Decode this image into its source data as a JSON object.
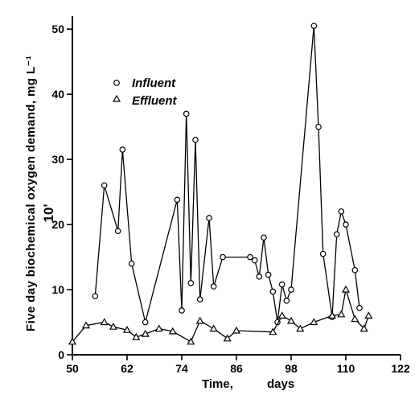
{
  "chart_data": {
    "type": "line",
    "ylabel": "Five day biochemical oxygen demand,   mg L⁻¹",
    "ylabel_multiplier": "10'",
    "xlabel_left": "Time,",
    "xlabel_right": "days",
    "xlim": [
      50,
      122
    ],
    "ylim": [
      0,
      52
    ],
    "x_ticks": [
      50,
      62,
      74,
      86,
      98,
      110,
      122
    ],
    "y_ticks": [
      0,
      10,
      20,
      30,
      40,
      50
    ],
    "legend_position": "top-left",
    "grid": false,
    "series": [
      {
        "name": "Influent",
        "marker": "circle",
        "x": [
          55,
          57,
          60,
          61,
          63,
          66,
          73,
          74,
          75,
          76,
          77,
          78,
          80,
          81,
          83,
          89,
          90,
          91,
          92,
          93,
          94,
          95,
          96,
          97,
          98,
          103,
          104,
          105,
          107,
          108,
          109,
          110,
          112,
          113
        ],
        "y": [
          9,
          26,
          19,
          31.5,
          14,
          5,
          23.8,
          6.8,
          37,
          11,
          33,
          8.5,
          21,
          10.5,
          15,
          15,
          14.5,
          12,
          18,
          12.3,
          9.7,
          5,
          10.8,
          8.3,
          10,
          50.5,
          35,
          15.5,
          5.8,
          18.5,
          22,
          20,
          13,
          7.2
        ]
      },
      {
        "name": "Effluent",
        "marker": "triangle",
        "x": [
          50,
          53,
          57,
          59,
          62,
          64,
          66,
          69,
          72,
          76,
          78,
          81,
          84,
          86,
          94,
          96,
          98,
          100,
          103,
          107,
          109,
          110,
          112,
          114,
          115
        ],
        "y": [
          2,
          4.5,
          5,
          4.3,
          3.8,
          2.7,
          3.2,
          4,
          3.6,
          2,
          5.2,
          4,
          2.5,
          3.7,
          3.5,
          6,
          5.2,
          4,
          5,
          6,
          6.2,
          10,
          5.5,
          4,
          6
        ]
      }
    ]
  }
}
